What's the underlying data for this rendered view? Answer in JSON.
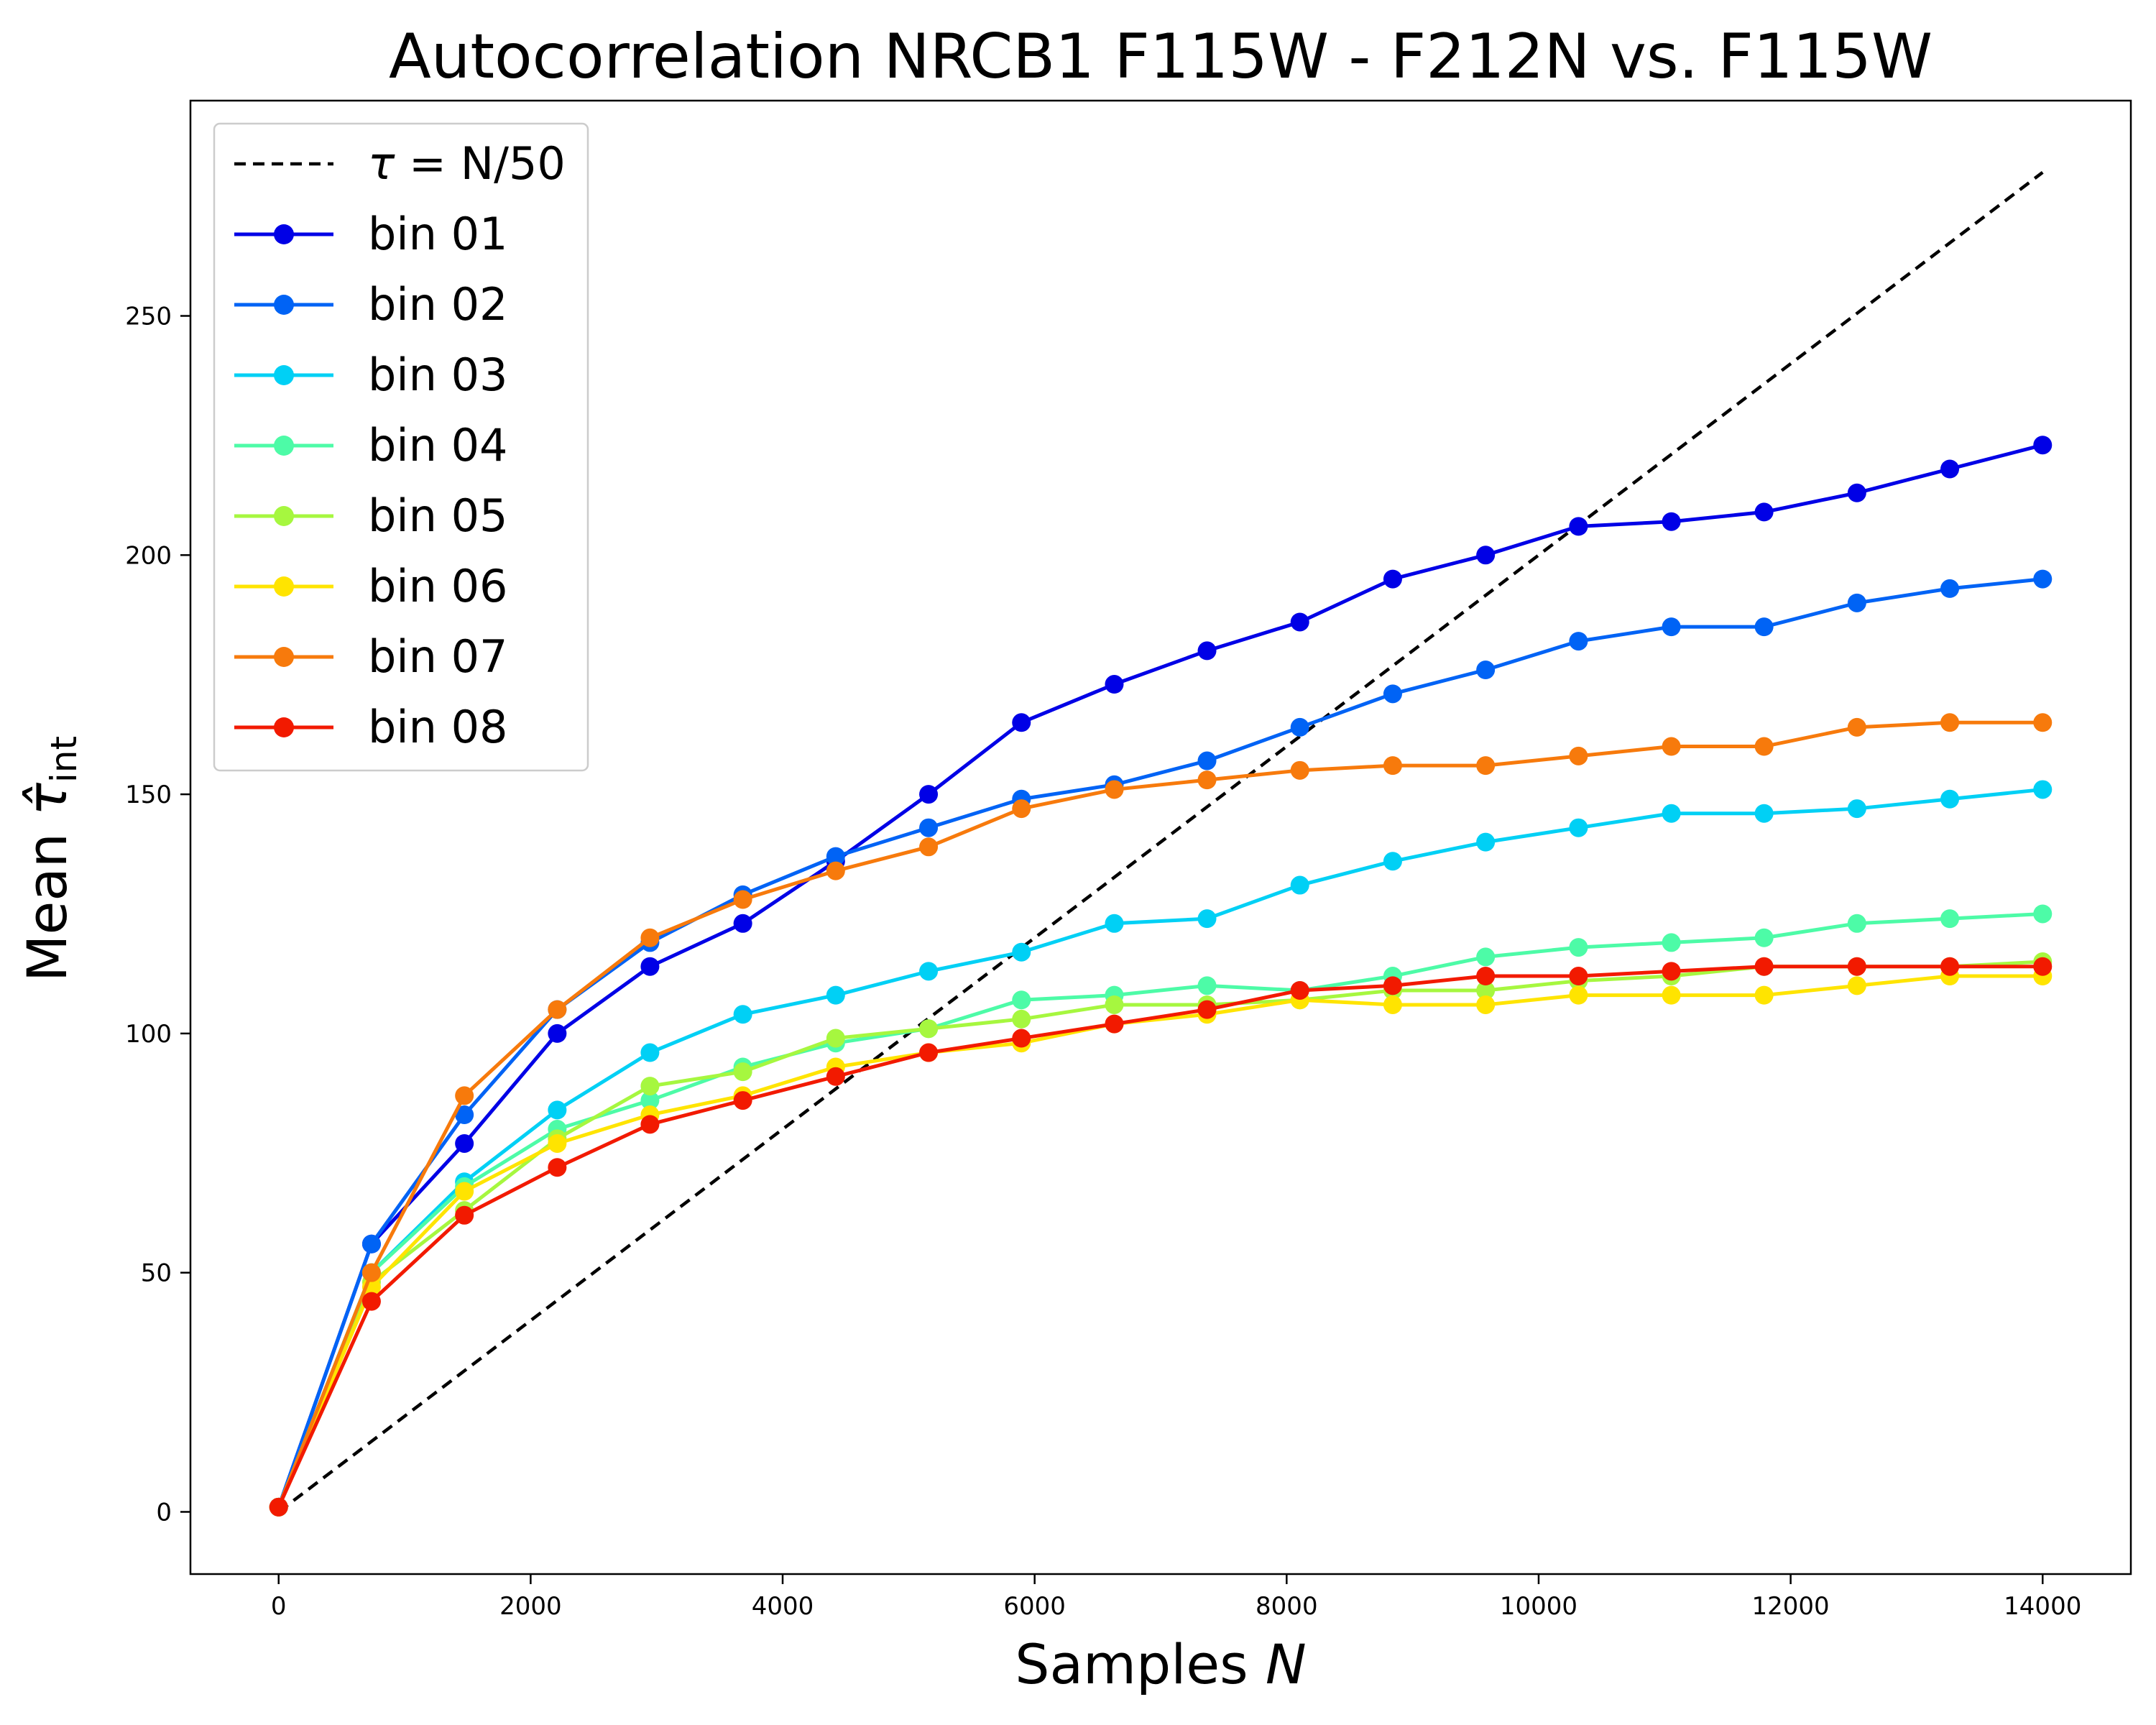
{
  "chart_data": {
    "type": "line",
    "title": "Autocorrelation NRCB1 F115W - F212N vs. F115W",
    "xlabel_prefix": "Samples ",
    "xlabel_var": "N",
    "ylabel_prefix": "Mean ",
    "ylabel_symbol": "τ̂",
    "ylabel_sub": "int",
    "xlim": [
      -700,
      14700
    ],
    "ylim": [
      -13,
      295
    ],
    "xticks": [
      0,
      2000,
      4000,
      6000,
      8000,
      10000,
      12000,
      14000
    ],
    "yticks": [
      0,
      50,
      100,
      150,
      200,
      250
    ],
    "legend_position": "upper-left",
    "reference_line": {
      "label_tau": "τ",
      "label_rest": " = N/50",
      "x": [
        0,
        14000
      ],
      "y": [
        0,
        280
      ],
      "color": "#000000",
      "style": "dashed"
    },
    "x": [
      0,
      737,
      1474,
      2211,
      2947,
      3684,
      4421,
      5158,
      5895,
      6632,
      7368,
      8105,
      8842,
      9579,
      10316,
      11053,
      11789,
      12526,
      13263,
      14000
    ],
    "series": [
      {
        "name": "bin 01",
        "color": "#0000e6",
        "values": [
          1,
          56,
          77,
          100,
          114,
          123,
          136,
          150,
          165,
          173,
          180,
          186,
          195,
          200,
          206,
          207,
          209,
          213,
          218,
          223
        ]
      },
      {
        "name": "bin 02",
        "color": "#0063f5",
        "values": [
          1,
          56,
          83,
          105,
          119,
          129,
          137,
          143,
          149,
          152,
          157,
          164,
          171,
          176,
          182,
          185,
          185,
          190,
          193,
          195
        ]
      },
      {
        "name": "bin 03",
        "color": "#00d0f5",
        "values": [
          1,
          50,
          69,
          84,
          96,
          104,
          108,
          113,
          117,
          123,
          124,
          131,
          136,
          140,
          143,
          146,
          146,
          147,
          149,
          151
        ]
      },
      {
        "name": "bin 04",
        "color": "#4dfba7",
        "values": [
          1,
          50,
          68,
          80,
          86,
          93,
          98,
          101,
          107,
          108,
          110,
          109,
          112,
          116,
          118,
          119,
          120,
          123,
          124,
          125
        ]
      },
      {
        "name": "bin 05",
        "color": "#a6f73f",
        "values": [
          1,
          48,
          63,
          78,
          89,
          92,
          99,
          101,
          103,
          106,
          106,
          107,
          109,
          109,
          111,
          112,
          114,
          114,
          114,
          115
        ]
      },
      {
        "name": "bin 06",
        "color": "#ffe400",
        "values": [
          1,
          47,
          67,
          77,
          83,
          87,
          93,
          96,
          98,
          102,
          104,
          107,
          106,
          106,
          108,
          108,
          108,
          110,
          112,
          112
        ]
      },
      {
        "name": "bin 07",
        "color": "#f77a0c",
        "values": [
          1,
          50,
          87,
          105,
          120,
          128,
          134,
          139,
          147,
          151,
          153,
          155,
          156,
          156,
          158,
          160,
          160,
          164,
          165,
          165
        ]
      },
      {
        "name": "bin 08",
        "color": "#f21a00",
        "values": [
          1,
          44,
          62,
          72,
          81,
          86,
          91,
          96,
          99,
          102,
          105,
          109,
          110,
          112,
          112,
          113,
          114,
          114,
          114,
          114
        ]
      }
    ]
  }
}
